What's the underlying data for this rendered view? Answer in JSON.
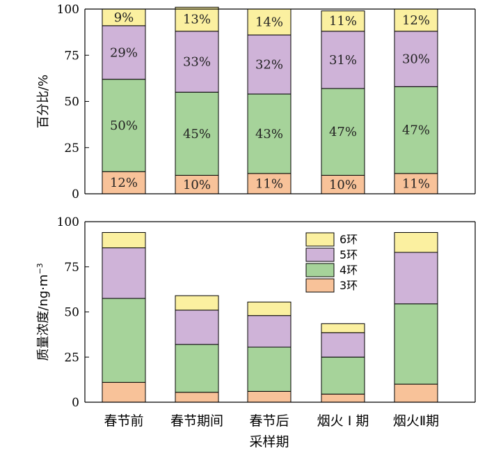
{
  "chart_data": [
    {
      "type": "bar",
      "stacked": true,
      "ylabel": "百分比/%",
      "ylim": [
        0,
        100
      ],
      "yticks": [
        "0",
        "25",
        "50",
        "75",
        "100"
      ],
      "categories": [
        "春节前",
        "春节期间",
        "春节后",
        "烟火 Ⅰ 期",
        "烟火Ⅱ期"
      ],
      "series": [
        {
          "name": "3环",
          "color": "#f8c299",
          "values": [
            12,
            10,
            11,
            10,
            11
          ],
          "labels": [
            "12%",
            "10%",
            "11%",
            "10%",
            "11%"
          ]
        },
        {
          "name": "4环",
          "color": "#a6d39a",
          "values": [
            50,
            45,
            43,
            47,
            47
          ],
          "labels": [
            "50%",
            "45%",
            "43%",
            "47%",
            "47%"
          ]
        },
        {
          "name": "5环",
          "color": "#cfb3d8",
          "values": [
            29,
            33,
            32,
            31,
            30
          ],
          "labels": [
            "29%",
            "33%",
            "32%",
            "31%",
            "30%"
          ]
        },
        {
          "name": "6环",
          "color": "#fbf0a0",
          "values": [
            9,
            13,
            14,
            11,
            12
          ],
          "labels": [
            "9%",
            "13%",
            "14%",
            "11%",
            "12%"
          ]
        }
      ]
    },
    {
      "type": "bar",
      "stacked": true,
      "ylabel": "质量浓度/ng·m",
      "ylabel_sup": "−3",
      "xlabel": "采样期",
      "ylim": [
        0,
        100
      ],
      "yticks": [
        "0",
        "25",
        "50",
        "75",
        "100"
      ],
      "categories": [
        "春节前",
        "春节期间",
        "春节后",
        "烟火 Ⅰ 期",
        "烟火Ⅱ期"
      ],
      "legend": {
        "position": "top-right",
        "entries": [
          "6环",
          "5环",
          "4环",
          "3环"
        ]
      },
      "series": [
        {
          "name": "3环",
          "color": "#f8c299",
          "values": [
            11,
            5.5,
            6,
            4.5,
            10
          ]
        },
        {
          "name": "4环",
          "color": "#a6d39a",
          "values": [
            46.5,
            26.5,
            24.5,
            20.5,
            44.5
          ]
        },
        {
          "name": "5环",
          "color": "#cfb3d8",
          "values": [
            28,
            19,
            17.5,
            13.5,
            28.5
          ]
        },
        {
          "name": "6环",
          "color": "#fbf0a0",
          "values": [
            8.5,
            8,
            7.5,
            5,
            11
          ]
        }
      ]
    }
  ]
}
